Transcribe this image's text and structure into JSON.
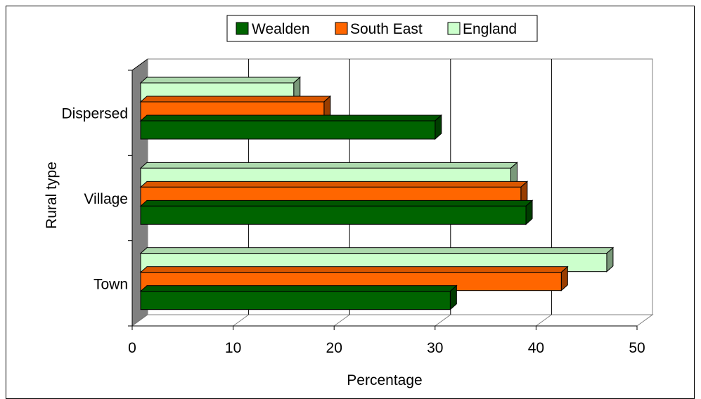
{
  "chart_data": {
    "type": "bar",
    "orientation": "horizontal",
    "style": "3d",
    "categories": [
      "Dispersed",
      "Village",
      "Town"
    ],
    "series": [
      {
        "name": "Wealden",
        "color": "#006400",
        "values": [
          30,
          39,
          31.5
        ]
      },
      {
        "name": "South East",
        "color": "#ff6600",
        "values": [
          19,
          38.5,
          42.5
        ]
      },
      {
        "name": "England",
        "color": "#ccffcc",
        "values": [
          16,
          37.5,
          47
        ]
      }
    ],
    "xlabel": "Percentage",
    "ylabel": "Rural type",
    "xlim": [
      0,
      50
    ],
    "xticks": [
      "0",
      "10",
      "20",
      "30",
      "40",
      "50"
    ],
    "grid": true,
    "legend_position": "top"
  }
}
